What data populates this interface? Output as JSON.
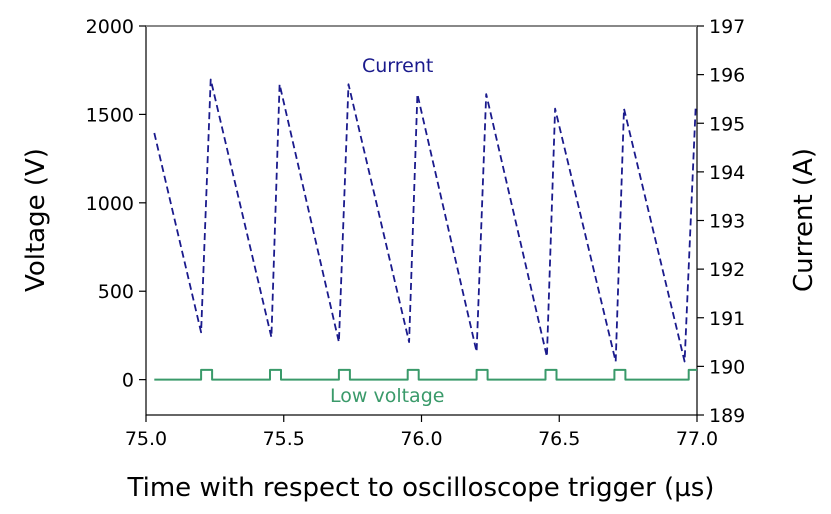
{
  "chart_data": {
    "type": "line",
    "xlabel": "Time with respect to oscilloscope trigger (µs)",
    "ylabel_left": "Voltage (V)",
    "ylabel_right": "Current (A)",
    "xlim": [
      75.0,
      77.0
    ],
    "ylim_left": [
      -200,
      2000
    ],
    "ylim_right": [
      189,
      197
    ],
    "x_ticks": [
      "75.0",
      "75.5",
      "76.0",
      "76.5",
      "77.0"
    ],
    "x_tick_values": [
      75.0,
      75.5,
      76.0,
      76.5,
      77.0
    ],
    "y_left_ticks": [
      "0",
      "500",
      "1000",
      "1500",
      "2000"
    ],
    "y_left_tick_values": [
      0,
      500,
      1000,
      1500,
      2000
    ],
    "y_right_ticks": [
      "189",
      "190",
      "191",
      "192",
      "193",
      "194",
      "195",
      "196",
      "197"
    ],
    "y_right_tick_values": [
      189,
      190,
      191,
      192,
      193,
      194,
      195,
      196,
      197
    ],
    "grid": false,
    "series": [
      {
        "name": "Current",
        "axis": "right",
        "color": "#1a1a8c",
        "style": "dashed",
        "label": "Current",
        "x": [
          75.03,
          75.2,
          75.235,
          75.455,
          75.485,
          75.7,
          75.735,
          75.955,
          75.985,
          76.2,
          76.235,
          76.455,
          76.485,
          76.705,
          76.735,
          76.955,
          76.995
        ],
        "y": [
          194.8,
          190.7,
          195.9,
          190.6,
          195.8,
          190.5,
          195.8,
          190.5,
          195.6,
          190.3,
          195.6,
          190.2,
          195.3,
          190.1,
          195.3,
          190.1,
          195.3
        ]
      },
      {
        "name": "Low voltage",
        "axis": "left",
        "color": "#3a9a6a",
        "style": "solid",
        "label": "Low voltage",
        "x": [
          75.03,
          75.2,
          75.2,
          75.24,
          75.24,
          75.45,
          75.45,
          75.49,
          75.49,
          75.7,
          75.7,
          75.74,
          75.74,
          75.95,
          75.95,
          75.99,
          75.99,
          76.2,
          76.2,
          76.24,
          76.24,
          76.45,
          76.45,
          76.49,
          76.49,
          76.7,
          76.7,
          76.74,
          76.74,
          76.97,
          76.97,
          77.0
        ],
        "y": [
          0,
          0,
          55,
          55,
          0,
          0,
          55,
          55,
          0,
          0,
          55,
          55,
          0,
          0,
          55,
          55,
          0,
          0,
          55,
          55,
          0,
          0,
          55,
          55,
          0,
          0,
          55,
          55,
          0,
          0,
          55,
          55
        ]
      }
    ]
  }
}
